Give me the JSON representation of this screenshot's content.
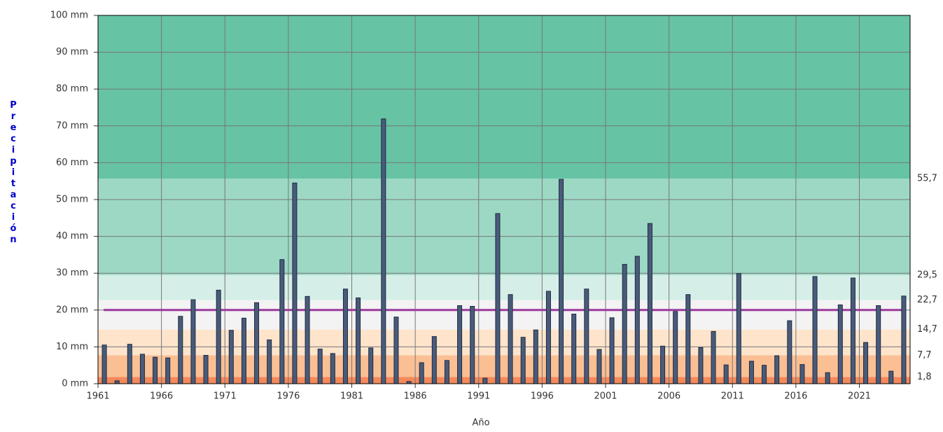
{
  "chart_data": {
    "type": "bar",
    "x_label": "Año",
    "y_label": "Precipitación",
    "x": [
      1961,
      1962,
      1963,
      1964,
      1965,
      1966,
      1967,
      1968,
      1969,
      1970,
      1971,
      1972,
      1973,
      1974,
      1975,
      1976,
      1977,
      1978,
      1979,
      1980,
      1981,
      1982,
      1983,
      1984,
      1985,
      1986,
      1987,
      1988,
      1989,
      1990,
      1991,
      1992,
      1993,
      1994,
      1995,
      1996,
      1997,
      1998,
      1999,
      2000,
      2001,
      2002,
      2003,
      2004,
      2005,
      2006,
      2007,
      2008,
      2009,
      2010,
      2011,
      2012,
      2013,
      2014,
      2015,
      2016,
      2017,
      2018,
      2019,
      2020,
      2021,
      2022,
      2023,
      2024
    ],
    "values": [
      10.5,
      0.8,
      10.7,
      8,
      7.2,
      7,
      18.3,
      22.8,
      7.7,
      25.4,
      14.5,
      17.8,
      22,
      11.9,
      33.7,
      54.5,
      23.7,
      9.4,
      8.2,
      25.7,
      23.3,
      9.7,
      71.9,
      18.1,
      0.6,
      5.7,
      12.8,
      6.3,
      21.2,
      21,
      1.5,
      46.2,
      24.2,
      12.6,
      14.6,
      25.1,
      55.5,
      18.9,
      25.7,
      9.3,
      17.9,
      32.4,
      34.6,
      43.5,
      10.2,
      19.6,
      24.2,
      9.8,
      14.2,
      5.1,
      29.9,
      6.1,
      5,
      7.6,
      17.1,
      5.2,
      29.1,
      3,
      21.4,
      28.7,
      11.2,
      21.2,
      3.4,
      23.8
    ],
    "color": "#4a5b7a",
    "xlim": [
      1961,
      2025
    ],
    "xticks": [
      1961,
      1966,
      1971,
      1976,
      1981,
      1986,
      1991,
      1996,
      2001,
      2006,
      2011,
      2016,
      2021
    ],
    "ylim": [
      0,
      100
    ],
    "yticks": [
      {
        "value": 0,
        "label": "0 mm"
      },
      {
        "value": 10,
        "label": "10 mm"
      },
      {
        "value": 20,
        "label": "20 mm"
      },
      {
        "value": 30,
        "label": "30 mm"
      },
      {
        "value": 40,
        "label": "40 mm"
      },
      {
        "value": 50,
        "label": "50 mm"
      },
      {
        "value": 60,
        "label": "60 mm"
      },
      {
        "value": 70,
        "label": "70 mm"
      },
      {
        "value": 80,
        "label": "80 mm"
      },
      {
        "value": 90,
        "label": "90 mm"
      },
      {
        "value": 100,
        "label": "100 mm"
      }
    ],
    "thresholds": [
      {
        "value": 1.8,
        "label": "1,8"
      },
      {
        "value": 7.7,
        "label": "7,7"
      },
      {
        "value": 14.7,
        "label": "14,7"
      },
      {
        "value": 22.7,
        "label": "22,7"
      },
      {
        "value": 29.5,
        "label": "29,5"
      },
      {
        "value": 55.7,
        "label": "55,7"
      }
    ],
    "band_colors": [
      "#f4895a",
      "#fbbf94",
      "#fde4cb",
      "#f3f3f3",
      "#d5efe8",
      "#9dd8c5",
      "#66c3a4"
    ],
    "reference_line": 20,
    "reference_color": "#9b3a9e",
    "grid": true
  }
}
